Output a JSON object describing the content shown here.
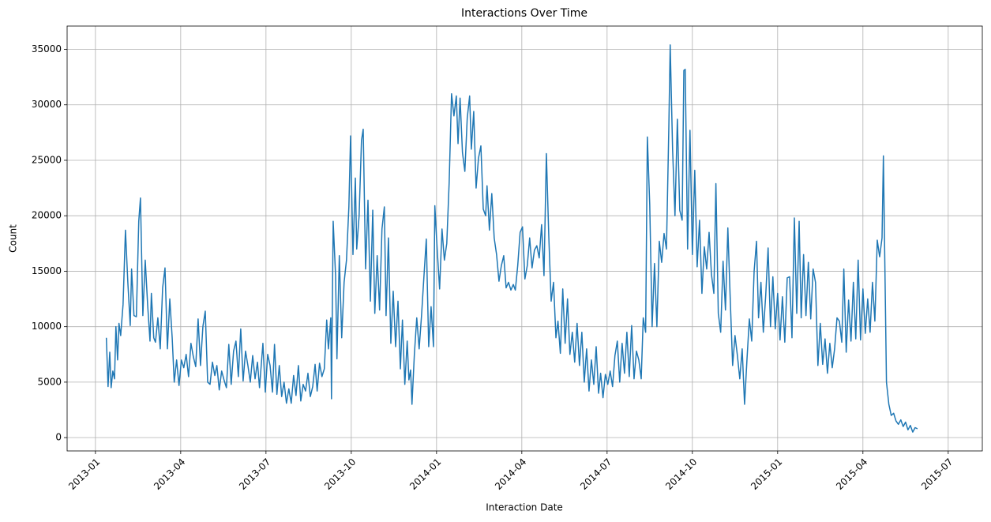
{
  "chart_data": {
    "type": "line",
    "title": "Interactions Over Time",
    "x_label": "Interaction Date",
    "y_label": "Count",
    "grid": true,
    "xlim": [
      2012.917,
      2015.6
    ],
    "ylim": [
      -1200,
      37100
    ],
    "xticks": [
      {
        "value": 2013.0,
        "label": "2013-01"
      },
      {
        "value": 2013.25,
        "label": "2013-04"
      },
      {
        "value": 2013.5,
        "label": "2013-07"
      },
      {
        "value": 2013.75,
        "label": "2013-10"
      },
      {
        "value": 2014.0,
        "label": "2014-01"
      },
      {
        "value": 2014.25,
        "label": "2014-04"
      },
      {
        "value": 2014.5,
        "label": "2014-07"
      },
      {
        "value": 2014.75,
        "label": "2014-10"
      },
      {
        "value": 2015.0,
        "label": "2015-01"
      },
      {
        "value": 2015.25,
        "label": "2015-04"
      },
      {
        "value": 2015.5,
        "label": "2015-07"
      }
    ],
    "yticks": [
      0,
      5000,
      10000,
      15000,
      20000,
      25000,
      30000,
      35000
    ],
    "x": [
      2013.032,
      2013.037,
      2013.042,
      2013.046,
      2013.051,
      2013.056,
      2013.06,
      2013.065,
      2013.069,
      2013.074,
      2013.081,
      2013.088,
      2013.095,
      2013.102,
      2013.106,
      2013.113,
      2013.12,
      2013.127,
      2013.132,
      2013.139,
      2013.146,
      2013.153,
      2013.16,
      2013.164,
      2013.171,
      2013.176,
      2013.183,
      2013.19,
      2013.197,
      2013.204,
      2013.211,
      2013.218,
      2013.225,
      2013.231,
      2013.238,
      2013.245,
      2013.252,
      2013.259,
      2013.266,
      2013.273,
      2013.28,
      2013.287,
      2013.294,
      2013.301,
      2013.308,
      2013.315,
      2013.322,
      2013.329,
      2013.336,
      2013.343,
      2013.35,
      2013.356,
      2013.363,
      2013.37,
      2013.377,
      2013.384,
      2013.391,
      2013.398,
      2013.405,
      2013.412,
      2013.419,
      2013.426,
      2013.433,
      2013.44,
      2013.447,
      2013.454,
      2013.461,
      2013.468,
      2013.475,
      2013.481,
      2013.491,
      2013.498,
      2013.505,
      2013.512,
      2013.519,
      2013.525,
      2013.532,
      2013.539,
      2013.546,
      2013.553,
      2013.56,
      2013.567,
      2013.574,
      2013.581,
      2013.588,
      2013.595,
      2013.602,
      2013.609,
      2013.616,
      2013.623,
      2013.63,
      2013.637,
      2013.644,
      2013.65,
      2013.657,
      2013.664,
      2013.671,
      2013.678,
      2013.683,
      2013.69,
      2013.692,
      2013.697,
      2013.704,
      2013.708,
      2013.715,
      2013.722,
      2013.729,
      2013.736,
      2013.743,
      2013.748,
      2013.755,
      2013.762,
      2013.766,
      2013.773,
      2013.78,
      2013.785,
      2013.792,
      2013.799,
      2013.806,
      2013.813,
      2013.819,
      2013.826,
      2013.833,
      2013.84,
      2013.847,
      2013.852,
      2013.859,
      2013.866,
      2013.873,
      2013.88,
      2013.887,
      2013.894,
      2013.9,
      2013.907,
      2013.914,
      2013.919,
      2013.924,
      2013.928,
      2013.935,
      2013.942,
      2013.949,
      2013.956,
      2013.963,
      2013.97,
      2013.977,
      2013.984,
      2013.991,
      2013.995,
      2014.002,
      2014.009,
      2014.016,
      2014.023,
      2014.03,
      2014.037,
      2014.044,
      2014.051,
      2014.058,
      2014.063,
      2014.069,
      2014.076,
      2014.083,
      2014.09,
      2014.097,
      2014.102,
      2014.109,
      2014.116,
      2014.123,
      2014.13,
      2014.137,
      2014.144,
      2014.148,
      2014.155,
      2014.162,
      2014.169,
      2014.176,
      2014.183,
      2014.19,
      2014.197,
      2014.204,
      2014.211,
      2014.218,
      2014.225,
      2014.231,
      2014.238,
      2014.245,
      2014.252,
      2014.259,
      2014.266,
      2014.273,
      2014.28,
      2014.287,
      2014.294,
      2014.301,
      2014.308,
      2014.315,
      2014.322,
      2014.329,
      2014.336,
      2014.343,
      2014.35,
      2014.356,
      2014.363,
      2014.37,
      2014.377,
      2014.384,
      2014.391,
      2014.398,
      2014.405,
      2014.412,
      2014.419,
      2014.426,
      2014.433,
      2014.44,
      2014.447,
      2014.454,
      2014.461,
      2014.468,
      2014.475,
      2014.481,
      2014.488,
      2014.495,
      2014.502,
      2014.509,
      2014.516,
      2014.523,
      2014.53,
      2014.537,
      2014.544,
      2014.551,
      2014.558,
      2014.565,
      2014.572,
      2014.579,
      2014.586,
      2014.593,
      2014.6,
      2014.606,
      2014.613,
      2014.618,
      2014.625,
      2014.632,
      2014.639,
      2014.646,
      2014.653,
      2014.66,
      2014.667,
      2014.674,
      2014.681,
      2014.685,
      2014.692,
      2014.699,
      2014.706,
      2014.713,
      2014.72,
      2014.725,
      2014.729,
      2014.736,
      2014.743,
      2014.75,
      2014.757,
      2014.764,
      2014.771,
      2014.778,
      2014.785,
      2014.792,
      2014.799,
      2014.806,
      2014.813,
      2014.819,
      2014.826,
      2014.833,
      2014.84,
      2014.847,
      2014.854,
      2014.861,
      2014.868,
      2014.875,
      2014.882,
      2014.889,
      2014.896,
      2014.903,
      2014.91,
      2014.917,
      2014.924,
      2014.931,
      2014.938,
      2014.944,
      2014.951,
      2014.958,
      2014.965,
      2014.972,
      2014.979,
      2014.986,
      2014.993,
      2015.0,
      2015.007,
      2015.014,
      2015.021,
      2015.028,
      2015.035,
      2015.042,
      2015.049,
      2015.056,
      2015.063,
      2015.069,
      2015.076,
      2015.083,
      2015.09,
      2015.097,
      2015.104,
      2015.111,
      2015.118,
      2015.125,
      2015.132,
      2015.139,
      2015.146,
      2015.153,
      2015.16,
      2015.167,
      2015.174,
      2015.181,
      2015.188,
      2015.194,
      2015.201,
      2015.208,
      2015.215,
      2015.222,
      2015.229,
      2015.236,
      2015.243,
      2015.25,
      2015.257,
      2015.264,
      2015.271,
      2015.278,
      2015.285,
      2015.292,
      2015.299,
      2015.306,
      2015.31,
      2015.315,
      2015.319,
      2015.326,
      2015.333,
      2015.34,
      2015.347,
      2015.354,
      2015.361,
      2015.368,
      2015.375,
      2015.382,
      2015.389,
      2015.396,
      2015.403,
      2015.41
    ],
    "series": [
      {
        "name": "Count",
        "color": "#1f77b4",
        "values": [
          9000,
          4600,
          7700,
          4500,
          6000,
          5300,
          10000,
          7000,
          10300,
          9200,
          12000,
          18700,
          14000,
          10100,
          15200,
          11000,
          10900,
          19500,
          21600,
          11000,
          16000,
          12000,
          8700,
          13000,
          9000,
          8600,
          10800,
          8000,
          13500,
          15300,
          8000,
          12500,
          9000,
          5000,
          7000,
          4700,
          7000,
          6300,
          7500,
          5500,
          8500,
          7300,
          6400,
          10700,
          6500,
          10000,
          11400,
          5000,
          4800,
          6800,
          5600,
          6500,
          4300,
          6000,
          5200,
          4500,
          8400,
          4800,
          7800,
          8700,
          5500,
          9800,
          5100,
          7800,
          6500,
          5000,
          7400,
          5300,
          6800,
          4500,
          8500,
          4100,
          7500,
          6500,
          4100,
          8400,
          3900,
          6500,
          3700,
          5000,
          3100,
          4400,
          3100,
          5600,
          3800,
          6500,
          3300,
          4800,
          4200,
          5800,
          3700,
          4600,
          6600,
          4200,
          6700,
          5500,
          6200,
          10600,
          8000,
          10800,
          3500,
          19500,
          14600,
          7100,
          16400,
          9000,
          14000,
          16000,
          20800,
          27200,
          16500,
          23400,
          17000,
          20000,
          26800,
          27800,
          15200,
          21400,
          12300,
          20500,
          11200,
          16400,
          11500,
          18800,
          20800,
          11000,
          18000,
          8500,
          13200,
          8200,
          12300,
          6200,
          10600,
          4800,
          8700,
          5200,
          6100,
          3000,
          7500,
          10800,
          8000,
          11000,
          14500,
          17900,
          8200,
          11800,
          8200,
          20900,
          16900,
          13400,
          18800,
          16000,
          17500,
          23000,
          31000,
          29000,
          30800,
          26500,
          30600,
          25700,
          24000,
          28800,
          30800,
          26000,
          29400,
          22500,
          25200,
          26300,
          20600,
          20000,
          22700,
          18700,
          22000,
          18000,
          16500,
          14100,
          15500,
          16400,
          13500,
          14000,
          13300,
          13800,
          13300,
          15500,
          18500,
          19000,
          14300,
          15500,
          18000,
          15300,
          16900,
          17300,
          16200,
          19200,
          14600,
          25600,
          18200,
          12300,
          14000,
          9000,
          10500,
          7600,
          13400,
          8500,
          12500,
          7500,
          9500,
          6800,
          10300,
          6500,
          9500,
          5000,
          8000,
          4200,
          7000,
          4800,
          8200,
          4000,
          5800,
          3600,
          5700,
          4800,
          6000,
          4600,
          7400,
          8700,
          5000,
          8500,
          5800,
          9500,
          5500,
          10100,
          5300,
          7800,
          7000,
          5300,
          10800,
          9500,
          27100,
          21000,
          10000,
          15700,
          10000,
          17700,
          15800,
          18400,
          17000,
          28000,
          35400,
          26000,
          20000,
          28700,
          20500,
          19600,
          33100,
          33200,
          17000,
          27700,
          16500,
          24100,
          15400,
          19600,
          13000,
          17200,
          15200,
          18500,
          14700,
          13000,
          22900,
          11200,
          9500,
          15900,
          11500,
          18900,
          12500,
          6500,
          9200,
          7400,
          5300,
          8000,
          3000,
          7000,
          10700,
          8700,
          15000,
          17700,
          10800,
          14000,
          9500,
          12800,
          17100,
          10000,
          14500,
          9800,
          13000,
          8800,
          12700,
          8600,
          14400,
          14500,
          9000,
          19800,
          11200,
          19500,
          10800,
          16500,
          11000,
          15800,
          10700,
          15200,
          14000,
          6500,
          10300,
          6600,
          8900,
          5800,
          8500,
          6300,
          8000,
          10800,
          10500,
          8600,
          15200,
          7700,
          12400,
          8700,
          14000,
          8900,
          16000,
          8800,
          13400,
          9400,
          12500,
          9500,
          14000,
          10500,
          17800,
          16300,
          18000,
          25400,
          14000,
          5000,
          3000,
          2000,
          2200,
          1500,
          1200,
          1600,
          1000,
          1400,
          700,
          1100,
          500,
          900,
          800
        ]
      }
    ]
  }
}
